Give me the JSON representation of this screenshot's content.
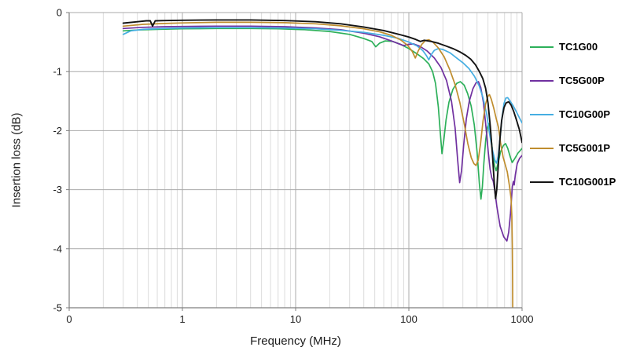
{
  "chart": {
    "x_axis": {
      "label": "Frequency (MHz)",
      "scale": "log",
      "tick_labels": [
        "0",
        "1",
        "10",
        "100",
        "1000"
      ],
      "tick_values": [
        0.1,
        1,
        10,
        100,
        1000
      ]
    },
    "y_axis": {
      "label": "Insertion loss (dB)",
      "tick_labels": [
        "0",
        "-1",
        "-2",
        "-3",
        "-4",
        "-5"
      ],
      "tick_values": [
        0,
        -1,
        -2,
        -3,
        -4,
        -5
      ]
    },
    "colors": {
      "grid_minor": "#dcdcdc",
      "grid_major": "#ababab",
      "grid_horizontal": "#a9a9a9",
      "axis_line": "#7f7f7f",
      "text": "#1a1a1a"
    }
  },
  "chart_data": {
    "type": "line",
    "title": "",
    "xlabel": "Frequency (MHz)",
    "ylabel": "Insertion loss (dB)",
    "x_scale": "log",
    "xlim": [
      0.1,
      1000
    ],
    "ylim": [
      -5,
      0
    ],
    "grid": true,
    "legend_position": "right",
    "x_unit": "MHz",
    "y_unit": "dB",
    "series": [
      {
        "name": "TC1G00",
        "color": "#2db05a",
        "points": [
          [
            0.3,
            -0.31
          ],
          [
            0.4,
            -0.295
          ],
          [
            0.6,
            -0.285
          ],
          [
            1,
            -0.275
          ],
          [
            2,
            -0.27
          ],
          [
            4,
            -0.27
          ],
          [
            7,
            -0.275
          ],
          [
            12,
            -0.29
          ],
          [
            20,
            -0.32
          ],
          [
            30,
            -0.37
          ],
          [
            40,
            -0.44
          ],
          [
            47,
            -0.49
          ],
          [
            51,
            -0.58
          ],
          [
            55,
            -0.52
          ],
          [
            62,
            -0.48
          ],
          [
            72,
            -0.49
          ],
          [
            85,
            -0.54
          ],
          [
            100,
            -0.61
          ],
          [
            118,
            -0.7
          ],
          [
            135,
            -0.78
          ],
          [
            150,
            -0.87
          ],
          [
            162,
            -1.0
          ],
          [
            172,
            -1.2
          ],
          [
            182,
            -1.6
          ],
          [
            190,
            -2.05
          ],
          [
            196,
            -2.39
          ],
          [
            203,
            -2.18
          ],
          [
            213,
            -1.82
          ],
          [
            226,
            -1.52
          ],
          [
            245,
            -1.3
          ],
          [
            265,
            -1.2
          ],
          [
            285,
            -1.17
          ],
          [
            308,
            -1.23
          ],
          [
            330,
            -1.37
          ],
          [
            355,
            -1.58
          ],
          [
            378,
            -1.9
          ],
          [
            400,
            -2.35
          ],
          [
            420,
            -2.9
          ],
          [
            433,
            -3.16
          ],
          [
            446,
            -2.95
          ],
          [
            460,
            -2.55
          ],
          [
            478,
            -2.15
          ],
          [
            495,
            -1.94
          ],
          [
            508,
            -1.88
          ],
          [
            524,
            -2.0
          ],
          [
            548,
            -2.35
          ],
          [
            572,
            -2.6
          ],
          [
            590,
            -2.68
          ],
          [
            612,
            -2.56
          ],
          [
            645,
            -2.36
          ],
          [
            685,
            -2.25
          ],
          [
            715,
            -2.22
          ],
          [
            748,
            -2.3
          ],
          [
            788,
            -2.45
          ],
          [
            818,
            -2.54
          ],
          [
            858,
            -2.48
          ],
          [
            920,
            -2.38
          ],
          [
            1000,
            -2.3
          ]
        ]
      },
      {
        "name": "TC5G00P",
        "color": "#7030a0",
        "points": [
          [
            0.3,
            -0.27
          ],
          [
            0.45,
            -0.25
          ],
          [
            0.7,
            -0.24
          ],
          [
            1,
            -0.235
          ],
          [
            2,
            -0.23
          ],
          [
            4,
            -0.23
          ],
          [
            8,
            -0.24
          ],
          [
            15,
            -0.26
          ],
          [
            25,
            -0.29
          ],
          [
            40,
            -0.35
          ],
          [
            55,
            -0.41
          ],
          [
            70,
            -0.48
          ],
          [
            82,
            -0.53
          ],
          [
            90,
            -0.56
          ],
          [
            98,
            -0.54
          ],
          [
            110,
            -0.53
          ],
          [
            125,
            -0.57
          ],
          [
            145,
            -0.65
          ],
          [
            168,
            -0.77
          ],
          [
            192,
            -0.93
          ],
          [
            215,
            -1.15
          ],
          [
            238,
            -1.5
          ],
          [
            256,
            -1.95
          ],
          [
            270,
            -2.5
          ],
          [
            281,
            -2.88
          ],
          [
            292,
            -2.68
          ],
          [
            305,
            -2.25
          ],
          [
            322,
            -1.8
          ],
          [
            342,
            -1.5
          ],
          [
            368,
            -1.29
          ],
          [
            392,
            -1.19
          ],
          [
            412,
            -1.17
          ],
          [
            432,
            -1.27
          ],
          [
            455,
            -1.52
          ],
          [
            478,
            -1.9
          ],
          [
            502,
            -2.35
          ],
          [
            522,
            -2.65
          ],
          [
            540,
            -2.8
          ],
          [
            557,
            -2.86
          ],
          [
            572,
            -3.0
          ],
          [
            600,
            -3.3
          ],
          [
            640,
            -3.62
          ],
          [
            690,
            -3.8
          ],
          [
            735,
            -3.87
          ],
          [
            762,
            -3.72
          ],
          [
            790,
            -3.4
          ],
          [
            820,
            -2.95
          ],
          [
            838,
            -2.86
          ],
          [
            852,
            -2.92
          ],
          [
            872,
            -2.75
          ],
          [
            905,
            -2.56
          ],
          [
            950,
            -2.47
          ],
          [
            1000,
            -2.42
          ]
        ]
      },
      {
        "name": "TC10G00P",
        "color": "#45aee2",
        "points": [
          [
            0.3,
            -0.37
          ],
          [
            0.35,
            -0.31
          ],
          [
            0.45,
            -0.285
          ],
          [
            0.65,
            -0.27
          ],
          [
            1,
            -0.26
          ],
          [
            2,
            -0.255
          ],
          [
            4,
            -0.255
          ],
          [
            8,
            -0.262
          ],
          [
            15,
            -0.275
          ],
          [
            25,
            -0.3
          ],
          [
            40,
            -0.335
          ],
          [
            60,
            -0.385
          ],
          [
            80,
            -0.435
          ],
          [
            100,
            -0.5
          ],
          [
            118,
            -0.565
          ],
          [
            133,
            -0.645
          ],
          [
            143,
            -0.73
          ],
          [
            150,
            -0.8
          ],
          [
            158,
            -0.71
          ],
          [
            168,
            -0.64
          ],
          [
            182,
            -0.61
          ],
          [
            200,
            -0.625
          ],
          [
            230,
            -0.68
          ],
          [
            265,
            -0.77
          ],
          [
            300,
            -0.85
          ],
          [
            340,
            -0.95
          ],
          [
            380,
            -1.08
          ],
          [
            418,
            -1.24
          ],
          [
            452,
            -1.44
          ],
          [
            488,
            -1.73
          ],
          [
            518,
            -2.07
          ],
          [
            548,
            -2.33
          ],
          [
            575,
            -2.5
          ],
          [
            595,
            -2.55
          ],
          [
            615,
            -2.44
          ],
          [
            640,
            -2.12
          ],
          [
            665,
            -1.78
          ],
          [
            692,
            -1.54
          ],
          [
            718,
            -1.45
          ],
          [
            745,
            -1.44
          ],
          [
            785,
            -1.5
          ],
          [
            835,
            -1.58
          ],
          [
            890,
            -1.68
          ],
          [
            945,
            -1.78
          ],
          [
            1000,
            -1.87
          ]
        ]
      },
      {
        "name": "TC5G001P",
        "color": "#bf8d2e",
        "points": [
          [
            0.3,
            -0.23
          ],
          [
            0.45,
            -0.2
          ],
          [
            0.7,
            -0.185
          ],
          [
            1,
            -0.175
          ],
          [
            2,
            -0.165
          ],
          [
            4,
            -0.165
          ],
          [
            8,
            -0.172
          ],
          [
            15,
            -0.19
          ],
          [
            25,
            -0.225
          ],
          [
            40,
            -0.275
          ],
          [
            55,
            -0.325
          ],
          [
            70,
            -0.385
          ],
          [
            85,
            -0.465
          ],
          [
            97,
            -0.55
          ],
          [
            107,
            -0.655
          ],
          [
            114,
            -0.77
          ],
          [
            121,
            -0.65
          ],
          [
            130,
            -0.54
          ],
          [
            140,
            -0.475
          ],
          [
            150,
            -0.46
          ],
          [
            163,
            -0.5
          ],
          [
            182,
            -0.6
          ],
          [
            205,
            -0.75
          ],
          [
            230,
            -0.97
          ],
          [
            256,
            -1.22
          ],
          [
            282,
            -1.52
          ],
          [
            308,
            -1.88
          ],
          [
            332,
            -2.22
          ],
          [
            356,
            -2.46
          ],
          [
            376,
            -2.56
          ],
          [
            392,
            -2.59
          ],
          [
            410,
            -2.5
          ],
          [
            430,
            -2.22
          ],
          [
            452,
            -1.84
          ],
          [
            476,
            -1.55
          ],
          [
            498,
            -1.42
          ],
          [
            515,
            -1.39
          ],
          [
            535,
            -1.47
          ],
          [
            562,
            -1.62
          ],
          [
            592,
            -1.8
          ],
          [
            620,
            -1.95
          ],
          [
            645,
            -2.2
          ],
          [
            680,
            -2.45
          ],
          [
            740,
            -2.7
          ],
          [
            775,
            -2.95
          ],
          [
            800,
            -3.15
          ],
          [
            812,
            -3.45
          ],
          [
            820,
            -3.95
          ],
          [
            825,
            -4.6
          ],
          [
            828,
            -5.3
          ]
        ]
      },
      {
        "name": "TC10G001P",
        "color": "#141414",
        "points": [
          [
            0.3,
            -0.18
          ],
          [
            0.4,
            -0.155
          ],
          [
            0.48,
            -0.14
          ],
          [
            0.52,
            -0.14
          ],
          [
            0.545,
            -0.23
          ],
          [
            0.575,
            -0.14
          ],
          [
            0.7,
            -0.135
          ],
          [
            1,
            -0.13
          ],
          [
            2,
            -0.125
          ],
          [
            4,
            -0.125
          ],
          [
            8,
            -0.135
          ],
          [
            15,
            -0.155
          ],
          [
            25,
            -0.19
          ],
          [
            40,
            -0.245
          ],
          [
            60,
            -0.305
          ],
          [
            80,
            -0.365
          ],
          [
            100,
            -0.415
          ],
          [
            115,
            -0.455
          ],
          [
            126,
            -0.49
          ],
          [
            137,
            -0.47
          ],
          [
            158,
            -0.49
          ],
          [
            182,
            -0.52
          ],
          [
            212,
            -0.565
          ],
          [
            248,
            -0.615
          ],
          [
            285,
            -0.67
          ],
          [
            318,
            -0.725
          ],
          [
            352,
            -0.79
          ],
          [
            388,
            -0.885
          ],
          [
            420,
            -1.0
          ],
          [
            450,
            -1.12
          ],
          [
            476,
            -1.28
          ],
          [
            500,
            -1.53
          ],
          [
            524,
            -1.93
          ],
          [
            548,
            -2.42
          ],
          [
            568,
            -2.88
          ],
          [
            583,
            -3.15
          ],
          [
            598,
            -3.0
          ],
          [
            615,
            -2.62
          ],
          [
            635,
            -2.18
          ],
          [
            660,
            -1.83
          ],
          [
            692,
            -1.61
          ],
          [
            722,
            -1.53
          ],
          [
            762,
            -1.51
          ],
          [
            802,
            -1.57
          ],
          [
            845,
            -1.68
          ],
          [
            895,
            -1.83
          ],
          [
            945,
            -1.98
          ],
          [
            1000,
            -2.2
          ]
        ]
      }
    ]
  },
  "legend": {
    "entries": [
      "TC1G00",
      "TC5G00P",
      "TC10G00P",
      "TC5G001P",
      "TC10G001P"
    ]
  }
}
